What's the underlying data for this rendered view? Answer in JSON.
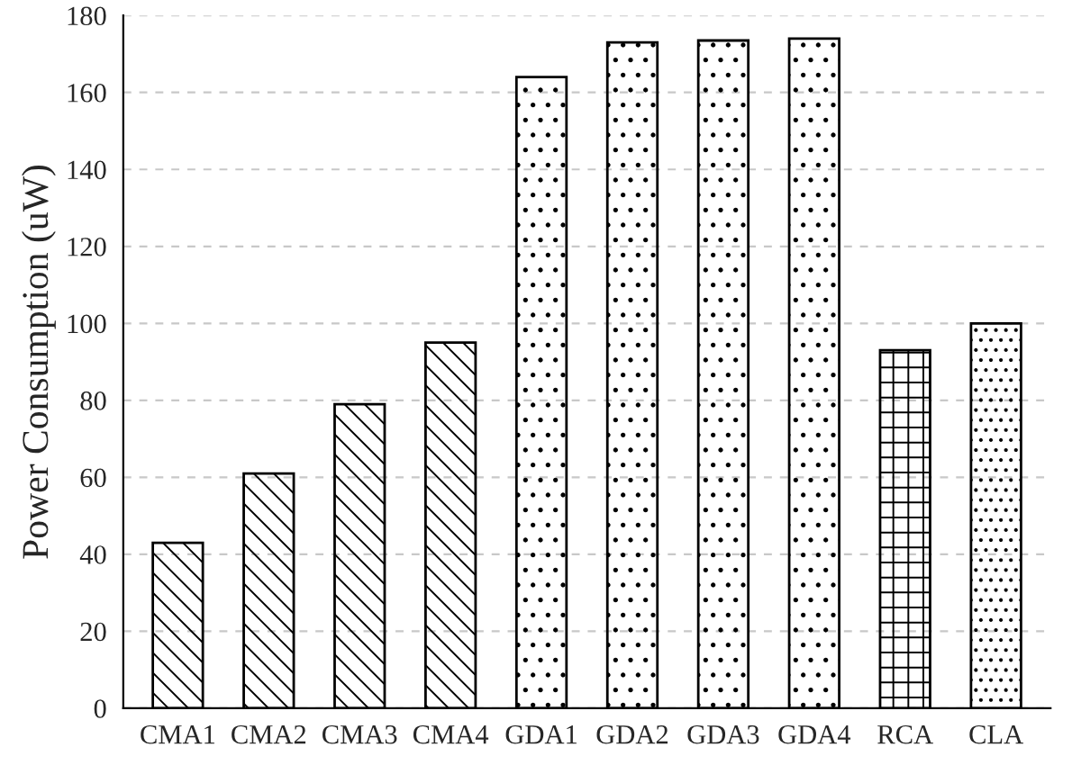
{
  "chart_data": {
    "type": "bar",
    "ylabel": "Power Consumption (uW)",
    "categories": [
      "CMA1",
      "CMA2",
      "CMA3",
      "CMA4",
      "GDA1",
      "GDA2",
      "GDA3",
      "GDA4",
      "RCA",
      "CLA"
    ],
    "values": [
      43,
      61,
      79,
      95,
      164,
      173,
      173.5,
      174,
      93,
      100
    ],
    "ylim": [
      0,
      180
    ],
    "yticks": [
      0,
      20,
      40,
      60,
      80,
      100,
      120,
      140,
      160,
      180
    ],
    "grid": "y"
  }
}
